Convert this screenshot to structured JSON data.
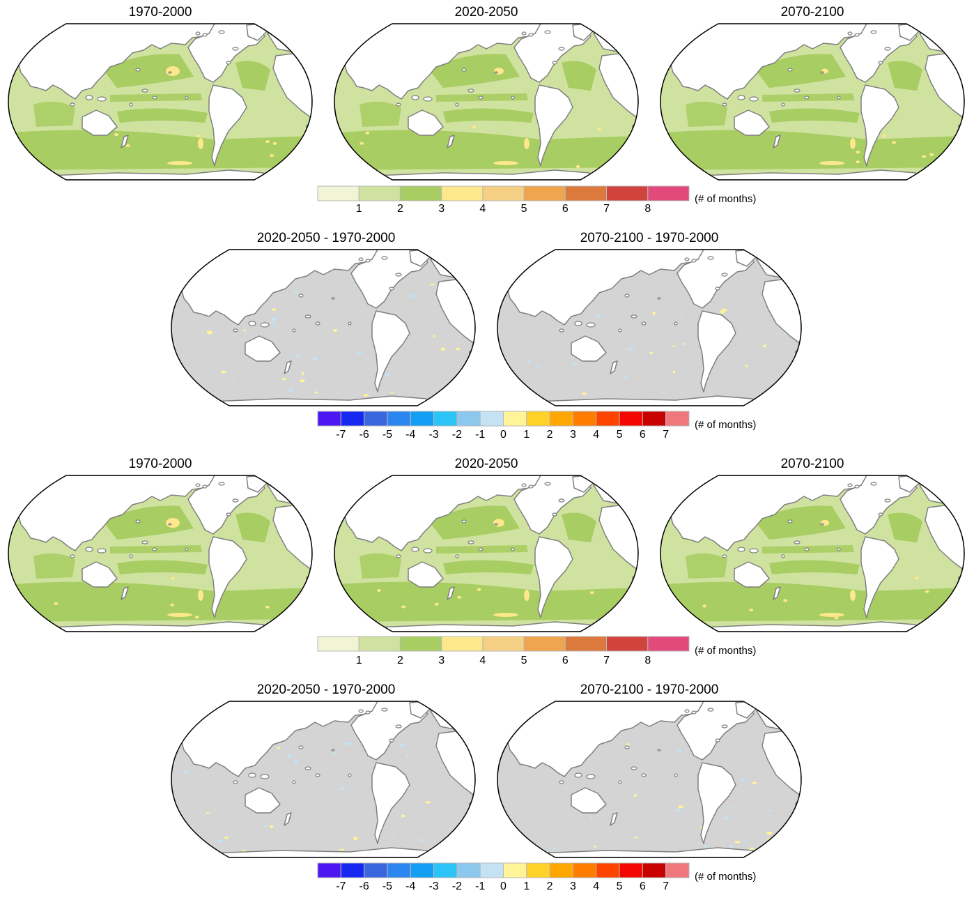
{
  "rows": [
    {
      "panels": [
        {
          "title": "1970-2000",
          "type": "absolute",
          "hotspot": 1.0
        },
        {
          "title": "2020-2050",
          "type": "absolute",
          "hotspot": 0.7
        },
        {
          "title": "2070-2100",
          "type": "absolute",
          "hotspot": 0.5
        }
      ]
    },
    {
      "panels": [
        {
          "title": "2020-2050 - 1970-2000",
          "type": "difference",
          "arctic": 0.6
        },
        {
          "title": "2070-2100 - 1970-2000",
          "type": "difference",
          "arctic": 1.0
        }
      ]
    },
    {
      "panels": [
        {
          "title": "1970-2000",
          "type": "absolute",
          "hotspot": 1.0
        },
        {
          "title": "2020-2050",
          "type": "absolute",
          "hotspot": 0.8
        },
        {
          "title": "2070-2100",
          "type": "absolute",
          "hotspot": 0.6
        }
      ]
    },
    {
      "panels": [
        {
          "title": "2020-2050 - 1970-2000",
          "type": "difference",
          "arctic": 0.8
        },
        {
          "title": "2070-2100 - 1970-2000",
          "type": "difference",
          "arctic": 1.0
        }
      ]
    }
  ],
  "colorbars": {
    "absolute": {
      "colors": [
        "#f1f5d6",
        "#cfe2a0",
        "#a8cd62",
        "#fde88c",
        "#f5cf84",
        "#eea54e",
        "#dc7a3e",
        "#d1443d",
        "#e34a7c"
      ],
      "ticks": [
        "1",
        "2",
        "3",
        "4",
        "5",
        "6",
        "7",
        "8"
      ],
      "unit": "(# of months)"
    },
    "difference": {
      "colors": [
        "#4c17f1",
        "#1628f2",
        "#3b67de",
        "#2b86ef",
        "#13a0f4",
        "#2cc3f7",
        "#8cc8ee",
        "#c3e2f4",
        "#fff497",
        "#ffd22a",
        "#ffa700",
        "#ff7c00",
        "#ff4400",
        "#f20800",
        "#c90000",
        "#f0787c"
      ],
      "ticks": [
        "-7",
        "-6",
        "-5",
        "-4",
        "-3",
        "-2",
        "-1",
        "0",
        "1",
        "2",
        "3",
        "4",
        "5",
        "6",
        "7"
      ],
      "unit": "(# of months)"
    }
  },
  "style": {
    "ocean_abs_main": "#cfe2a0",
    "ocean_abs_band": "#a8cd62",
    "ocean_abs_hot": "#fde88c",
    "ocean_diff": "#d4d4d4",
    "diff_pos": "#fff497",
    "diff_neg": "#c3e2f4",
    "land": "#ffffff",
    "coast": "#7f7f7f"
  }
}
